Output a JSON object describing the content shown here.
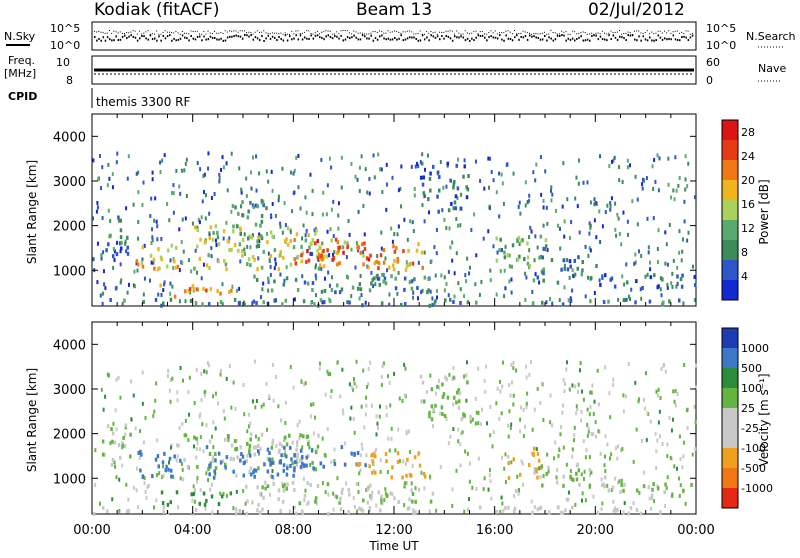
{
  "header": {
    "station": "Kodiak (fitACF)",
    "beam": "Beam 13",
    "date": "02/Jul/2012"
  },
  "status_panel": {
    "nsky_label": "N.Sky",
    "nsky_ticks": [
      "10^5",
      "10^0"
    ],
    "nsearch_label": "N.Search",
    "nsearch_ticks": [
      "10^5",
      "10^0"
    ],
    "freq_label": "Freq.",
    "freq_unit": "[MHz]",
    "freq_ticks": [
      "10",
      "8"
    ],
    "nave_label": "Nave",
    "nave_ticks": [
      "60",
      "0"
    ],
    "cpid_label": "CPID",
    "cpid_value": "themis 3300 RF"
  },
  "colors": {
    "power_scale": [
      "#1428d2",
      "#2d56c8",
      "#3c8c5a",
      "#5aaa6e",
      "#aad25a",
      "#f0b41e",
      "#f07814",
      "#e63c14",
      "#dc1414"
    ],
    "velocity_scale": [
      "#1e3cb4",
      "#3c78c8",
      "#2d8c3c",
      "#64b441",
      "#c8c8c8",
      "#c8c8c8",
      "#f0a01e",
      "#f07814",
      "#e62814"
    ]
  },
  "chart_data": [
    {
      "type": "heatmap",
      "title": "Power",
      "ylabel": "Slant Range [km]",
      "xlabel": "Time UT",
      "x_ticks": [
        "00:00",
        "04:00",
        "08:00",
        "12:00",
        "16:00",
        "20:00",
        "00:00"
      ],
      "y_ticks": [
        "1000",
        "2000",
        "3000",
        "4000"
      ],
      "ylim": [
        200,
        4500
      ],
      "colorbar_label": "Power [dB]",
      "colorbar_ticks": [
        "4",
        "8",
        "12",
        "16",
        "20",
        "24",
        "28"
      ],
      "colorbar_range": [
        0,
        30
      ],
      "regions": [
        {
          "t": [
            0.3,
            1.5
          ],
          "r": [
            1300,
            2200
          ],
          "v": 7
        },
        {
          "t": [
            1.5,
            3.5
          ],
          "r": [
            1000,
            1600
          ],
          "v": 18
        },
        {
          "t": [
            2.5,
            5.5
          ],
          "r": [
            400,
            700
          ],
          "v": 21
        },
        {
          "t": [
            4.0,
            10.0
          ],
          "r": [
            1000,
            2000
          ],
          "v": 16
        },
        {
          "t": [
            5.5,
            7.0
          ],
          "r": [
            1500,
            2600
          ],
          "v": 10
        },
        {
          "t": [
            8.0,
            12.0
          ],
          "r": [
            1100,
            1700
          ],
          "v": 24
        },
        {
          "t": [
            10.5,
            13.2
          ],
          "r": [
            1000,
            1600
          ],
          "v": 20
        },
        {
          "t": [
            6.0,
            13.5
          ],
          "r": [
            500,
            900
          ],
          "v": 9
        },
        {
          "t": [
            13.0,
            15.0
          ],
          "r": [
            2300,
            3400
          ],
          "v": 6
        },
        {
          "t": [
            16.0,
            18.0
          ],
          "r": [
            1000,
            1800
          ],
          "v": 12
        },
        {
          "t": [
            17.5,
            20.0
          ],
          "r": [
            700,
            1300
          ],
          "v": 7
        },
        {
          "t": [
            20.0,
            24.0
          ],
          "r": [
            600,
            900
          ],
          "v": 5
        },
        {
          "t": [
            0.0,
            24.0
          ],
          "r": [
            200,
            350
          ],
          "v": 8
        }
      ]
    },
    {
      "type": "heatmap",
      "title": "Velocity",
      "ylabel": "Slant Range [km]",
      "xlabel": "Time UT",
      "x_ticks": [
        "00:00",
        "04:00",
        "08:00",
        "12:00",
        "16:00",
        "20:00",
        "00:00"
      ],
      "y_ticks": [
        "1000",
        "2000",
        "3000",
        "4000"
      ],
      "ylim": [
        200,
        4500
      ],
      "colorbar_label": "Velocity [m s⁻¹]",
      "colorbar_ticks": [
        "1000",
        "500",
        "100",
        "25",
        "-25",
        "-100",
        "-500",
        "-1000"
      ],
      "regions": [
        {
          "t": [
            0.3,
            1.5
          ],
          "r": [
            1300,
            2200
          ],
          "v": 0
        },
        {
          "t": [
            1.5,
            3.5
          ],
          "r": [
            1000,
            1600
          ],
          "v": 200
        },
        {
          "t": [
            2.5,
            5.5
          ],
          "r": [
            400,
            700
          ],
          "v": 80
        },
        {
          "t": [
            3.5,
            9.0
          ],
          "r": [
            1200,
            2000
          ],
          "v": 0
        },
        {
          "t": [
            4.5,
            8.0
          ],
          "r": [
            1000,
            1700
          ],
          "v": 300
        },
        {
          "t": [
            7.0,
            11.0
          ],
          "r": [
            1200,
            1700
          ],
          "v": 150
        },
        {
          "t": [
            10.5,
            13.2
          ],
          "r": [
            1000,
            1600
          ],
          "v": -300
        },
        {
          "t": [
            6.0,
            13.5
          ],
          "r": [
            400,
            900
          ],
          "v": 0
        },
        {
          "t": [
            13.0,
            15.0
          ],
          "r": [
            2300,
            3400
          ],
          "v": 0
        },
        {
          "t": [
            16.5,
            17.8
          ],
          "r": [
            1000,
            1700
          ],
          "v": -400
        },
        {
          "t": [
            17.8,
            20.5
          ],
          "r": [
            800,
            1300
          ],
          "v": 0
        },
        {
          "t": [
            20.0,
            24.0
          ],
          "r": [
            600,
            900
          ],
          "v": 0
        },
        {
          "t": [
            0.0,
            24.0
          ],
          "r": [
            200,
            350
          ],
          "v": -50
        }
      ]
    }
  ]
}
